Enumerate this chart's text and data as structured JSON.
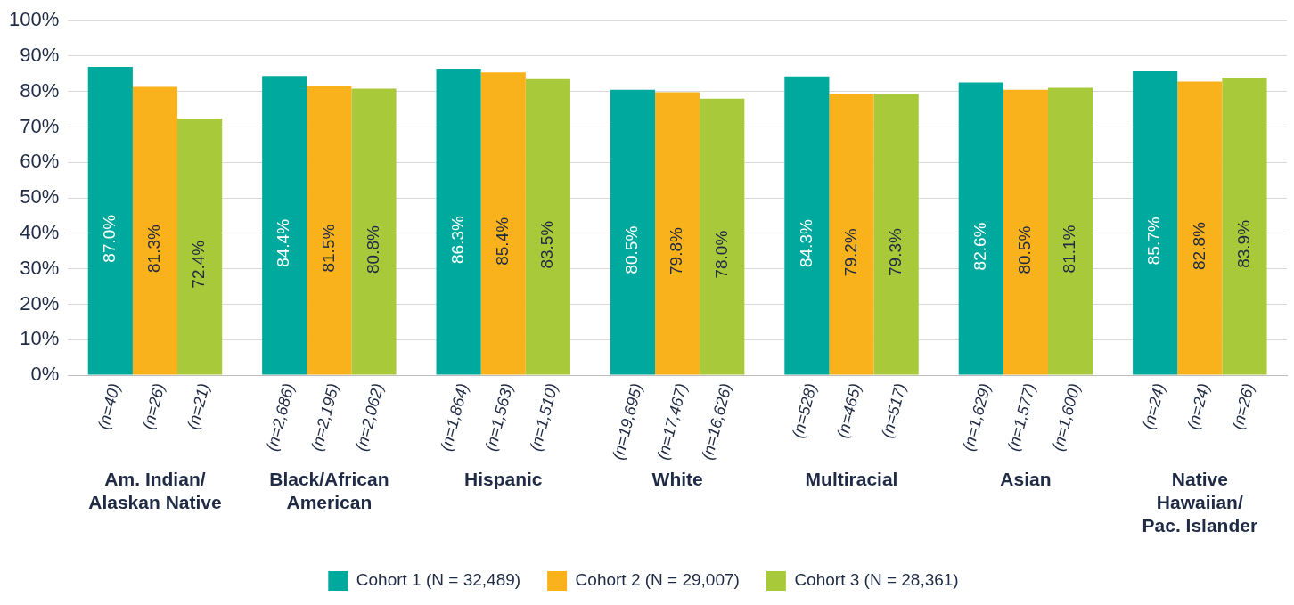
{
  "chart_data": {
    "type": "bar",
    "categories": [
      "Am. Indian/\nAlaskan Native",
      "Black/African\nAmerican",
      "Hispanic",
      "White",
      "Multiracial",
      "Asian",
      "Native\nHawaiian/\nPac. Islander"
    ],
    "series": [
      {
        "name": "Cohort 1 (N = 32,489)",
        "color": "#00a99d",
        "values": [
          87.0,
          84.4,
          86.3,
          80.5,
          84.3,
          82.6,
          85.7
        ],
        "value_labels": [
          "87.0%",
          "84.4%",
          "86.3%",
          "80.5%",
          "84.3%",
          "82.6%",
          "85.7%"
        ]
      },
      {
        "name": "Cohort 2 (N = 29,007)",
        "color": "#f9b21b",
        "values": [
          81.3,
          81.5,
          85.4,
          79.8,
          79.2,
          80.5,
          82.8
        ],
        "value_labels": [
          "81.3%",
          "81.5%",
          "85.4%",
          "79.8%",
          "79.2%",
          "80.5%",
          "82.8%"
        ]
      },
      {
        "name": "Cohort 3 (N = 28,361)",
        "color": "#a8c93a",
        "values": [
          72.4,
          80.8,
          83.5,
          78.0,
          79.3,
          81.1,
          83.9
        ],
        "value_labels": [
          "72.4%",
          "80.8%",
          "83.5%",
          "78.0%",
          "79.3%",
          "81.1%",
          "83.9%"
        ]
      }
    ],
    "annotations": [
      "(n=40)",
      "(n=26)",
      "(n=21)",
      "(n=2,686)",
      "(n=2,195)",
      "(n=2,062)",
      "(n=1,864)",
      "(n=1,563)",
      "(n=1,510)",
      "(n=19,695)",
      "(n=17,467)",
      "(n=16,626)",
      "(n=528)",
      "(n=465)",
      "(n=517)",
      "(n=1,629)",
      "(n=1,577)",
      "(n=1,600)",
      "(n=24)",
      "(n=24)",
      "(n=26)"
    ],
    "ylim": [
      0,
      100
    ],
    "yticks": [
      {
        "value": 0,
        "label": "0%"
      },
      {
        "value": 10,
        "label": "10%"
      },
      {
        "value": 20,
        "label": "20%"
      },
      {
        "value": 30,
        "label": "30%"
      },
      {
        "value": 40,
        "label": "40%"
      },
      {
        "value": 50,
        "label": "50%"
      },
      {
        "value": 60,
        "label": "60%"
      },
      {
        "value": 70,
        "label": "70%"
      },
      {
        "value": 80,
        "label": "80%"
      },
      {
        "value": 90,
        "label": "90%"
      },
      {
        "value": 100,
        "label": "100%"
      }
    ],
    "grid": "y",
    "legend": "bottom"
  }
}
